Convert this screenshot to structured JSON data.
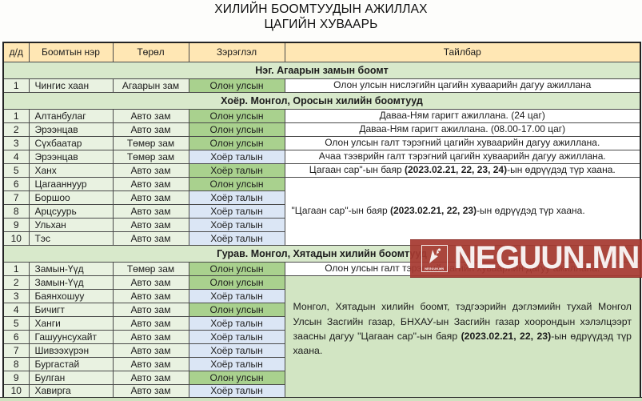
{
  "page": {
    "title_line1": "ХИЛИЙН БООМТУУДЫН АЖИЛЛАХ",
    "title_line2": "ЦАГИЙН ХУВААРЬ"
  },
  "colors": {
    "header_bg": "#ffe7b4",
    "section_bg": "#d8e9cb",
    "row_bg": "#e9f2e1",
    "green": "#a9d18e",
    "blue": "#dbe6f5",
    "white_bg": "#ffffff",
    "green_light": "#d2e5c3",
    "watermark_red": "#a63930",
    "bottom_strip": "#cfe2c0"
  },
  "watermark": {
    "text": "NEGUUN.MN",
    "logo_text": "NEGUUN.MN"
  },
  "table": {
    "columns": [
      "д/д",
      "Боомтын нэр",
      "Төрөл",
      "Зэрэглэл",
      "Тайлбар"
    ],
    "sections": [
      {
        "header": "Нэг. Агаарын замын боомт",
        "rows": [
          {
            "no": "1",
            "name": "Чингис хаан",
            "type": "Агаарын зам",
            "cls": "Олон улсын",
            "cls_bg": "green",
            "comment": {
              "span": 1,
              "bg": "white_bg",
              "align": "c",
              "parts": [
                {
                  "t": "Олон улсын нислэгийн цагийн хуваарийн дагуу ажиллана"
                }
              ]
            }
          }
        ]
      },
      {
        "header": "Хоёр. Монгол, Оросын хилийн боомтууд",
        "rows": [
          {
            "no": "1",
            "name": "Алтанбулаг",
            "type": "Авто зам",
            "cls": "Олон улсын",
            "cls_bg": "green",
            "comment": {
              "span": 1,
              "bg": "white_bg",
              "align": "c",
              "parts": [
                {
                  "t": "Даваа-Ням гаригт ажиллана. (24 цаг)"
                }
              ]
            }
          },
          {
            "no": "2",
            "name": "Эрээнцав",
            "type": "Авто зам",
            "cls": "Олон улсын",
            "cls_bg": "green",
            "comment": {
              "span": 1,
              "bg": "white_bg",
              "align": "c",
              "parts": [
                {
                  "t": "Даваа-Ням гаригт ажиллана. (08.00-17.00 цаг)"
                }
              ]
            }
          },
          {
            "no": "3",
            "name": "Сүхбаатар",
            "type": "Төмөр зам",
            "cls": "Олон улсын",
            "cls_bg": "green",
            "comment": {
              "span": 1,
              "bg": "white_bg",
              "align": "c",
              "parts": [
                {
                  "t": "Олон улсын галт тэрэгний цагийн хуваарийн дагуу ажиллана."
                }
              ]
            }
          },
          {
            "no": "4",
            "name": "Эрээнцав",
            "type": "Төмөр зам",
            "cls": "Хоёр талын",
            "cls_bg": "blue",
            "comment": {
              "span": 1,
              "bg": "white_bg",
              "align": "c",
              "parts": [
                {
                  "t": "Ачаа тээврийн галт тэрэгний цагийн хуваарийн дагуу ажиллана."
                }
              ]
            }
          },
          {
            "no": "5",
            "name": "Ханх",
            "type": "Авто зам",
            "cls": "Хоёр талын",
            "cls_bg": "green",
            "comment": {
              "span": 1,
              "bg": "white_bg",
              "align": "c",
              "parts": [
                {
                  "t": "Цагаан сар\"-ын баяр "
                },
                {
                  "t": "(2023.02.21, 22, 23, 24)",
                  "b": true
                },
                {
                  "t": "-ын өдрүүдэд түр хаана."
                }
              ]
            }
          },
          {
            "no": "6",
            "name": "Цагааннуур",
            "type": "Авто зам",
            "cls": "Олон улсын",
            "cls_bg": "green",
            "comment": {
              "span": 5,
              "bg": "white_bg",
              "align": "left",
              "parts": [
                {
                  "t": "\"Цагаан сар\"-ын баяр "
                },
                {
                  "t": "(2023.02.21, 22, 23)",
                  "b": true
                },
                {
                  "t": "-ын өдрүүдэд түр хаана."
                }
              ]
            }
          },
          {
            "no": "7",
            "name": "Боршоо",
            "type": "Авто зам",
            "cls": "Хоёр талын",
            "cls_bg": "blue",
            "comment": null
          },
          {
            "no": "8",
            "name": "Арцсуурь",
            "type": "Авто зам",
            "cls": "Хоёр талын",
            "cls_bg": "blue",
            "comment": null
          },
          {
            "no": "9",
            "name": "Ульхан",
            "type": "Авто зам",
            "cls": "Хоёр талын",
            "cls_bg": "blue",
            "comment": null
          },
          {
            "no": "10",
            "name": "Тэс",
            "type": "Авто зам",
            "cls": "Хоёр талын",
            "cls_bg": "blue",
            "comment": null
          }
        ]
      },
      {
        "header": "Гурав. Монгол, Хятадын хилийн боомтууд",
        "rows": [
          {
            "no": "1",
            "name": "Замын-Үүд",
            "type": "Төмөр зам",
            "cls": "Олон улсын",
            "cls_bg": "green",
            "comment": {
              "span": 1,
              "bg": "white_bg",
              "align": "c",
              "parts": [
                {
                  "t": "Олон улсын галт тэрэгний цагийн хуваарийн дагуу ажиллана."
                }
              ]
            }
          },
          {
            "no": "2",
            "name": "Замын-Үүд",
            "type": "Авто зам",
            "cls": "Олон улсын",
            "cls_bg": "green",
            "comment": {
              "span": 9,
              "bg": "green_light",
              "align": "just",
              "parts": [
                {
                  "t": "Монгол, Хятадын хилийн боомт, тэдгээрийн дэглэмийн тухай Монгол Улсын Засгийн газар, БНХАУ-ын Засгийн газар хоорондын хэлэлцээрт заасны дагуу \"Цагаан сар\"-ын баяр "
                },
                {
                  "t": "(2023.02.21, 22, 23)",
                  "b": true
                },
                {
                  "t": "-ын өдрүүдэд түр хаана."
                }
              ]
            }
          },
          {
            "no": "3",
            "name": "Баянхошуу",
            "type": "Авто зам",
            "cls": "Хоёр талын",
            "cls_bg": "blue",
            "comment": null
          },
          {
            "no": "4",
            "name": "Бичигт",
            "type": "Авто зам",
            "cls": "Олон улсын",
            "cls_bg": "green",
            "comment": null
          },
          {
            "no": "5",
            "name": "Ханги",
            "type": "Авто зам",
            "cls": "Хоёр талын",
            "cls_bg": "blue",
            "comment": null
          },
          {
            "no": "6",
            "name": "Гашуунсухайт",
            "type": "Авто зам",
            "cls": "Хоёр талын",
            "cls_bg": "blue",
            "comment": null
          },
          {
            "no": "7",
            "name": "Шивээхүрэн",
            "type": "Авто зам",
            "cls": "Хоёр талын",
            "cls_bg": "blue",
            "comment": null
          },
          {
            "no": "8",
            "name": "Бургастай",
            "type": "Авто зам",
            "cls": "Хоёр талын",
            "cls_bg": "blue",
            "comment": null
          },
          {
            "no": "9",
            "name": "Булган",
            "type": "Авто зам",
            "cls": "Олон улсын",
            "cls_bg": "green",
            "comment": null
          },
          {
            "no": "10",
            "name": "Хавирга",
            "type": "Авто зам",
            "cls": "Хоёр талын",
            "cls_bg": "blue",
            "comment": null
          }
        ]
      }
    ]
  }
}
